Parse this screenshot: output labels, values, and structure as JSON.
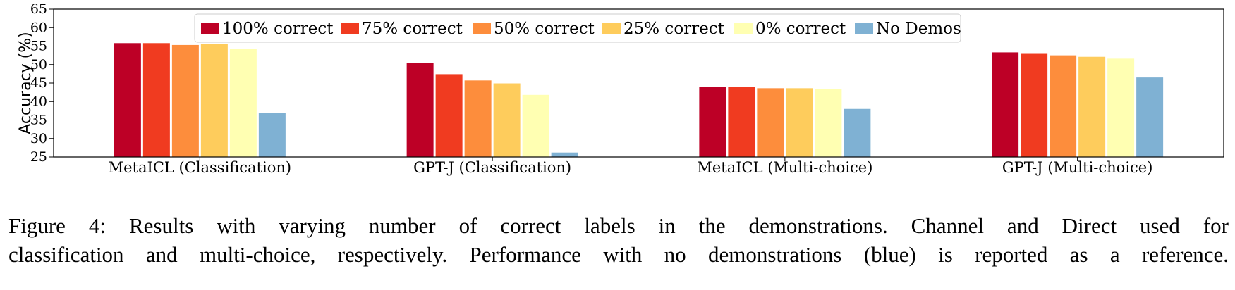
{
  "chart_data": {
    "type": "bar",
    "ylabel": "Accuracy (%)",
    "xlabel": "",
    "ylim": [
      25,
      65
    ],
    "yticks": [
      "25",
      "30",
      "35",
      "40",
      "45",
      "50",
      "55",
      "60",
      "65"
    ],
    "grid": false,
    "legend_placement": "top-center",
    "categories": [
      "MetaICL (Classification)",
      "GPT-J (Classification)",
      "MetaICL (Multi-choice)",
      "GPT-J (Multi-choice)"
    ],
    "series": [
      {
        "name": "100% correct",
        "color": "#bd0026",
        "values": [
          55.8,
          50.5,
          43.9,
          53.3
        ]
      },
      {
        "name": "75% correct",
        "color": "#f03b20",
        "values": [
          55.8,
          47.4,
          43.9,
          52.9
        ]
      },
      {
        "name": "50% correct",
        "color": "#fd8d3c",
        "values": [
          55.3,
          45.7,
          43.6,
          52.5
        ]
      },
      {
        "name": "25% correct",
        "color": "#fecc5c",
        "values": [
          55.6,
          44.9,
          43.6,
          52.1
        ]
      },
      {
        "name": "0% correct",
        "color": "#ffffb2",
        "values": [
          54.3,
          41.8,
          43.4,
          51.6
        ]
      },
      {
        "name": "No Demos",
        "color": "#7fb1d3",
        "values": [
          37.0,
          26.2,
          38.0,
          46.5
        ]
      }
    ]
  },
  "caption": {
    "line1": "Figure 4:  Results with varying number of correct labels in the demonstrations.  Channel and Direct used for",
    "line2": "classification and multi-choice, respectively. Performance with no demonstrations (blue) is reported as a reference."
  }
}
